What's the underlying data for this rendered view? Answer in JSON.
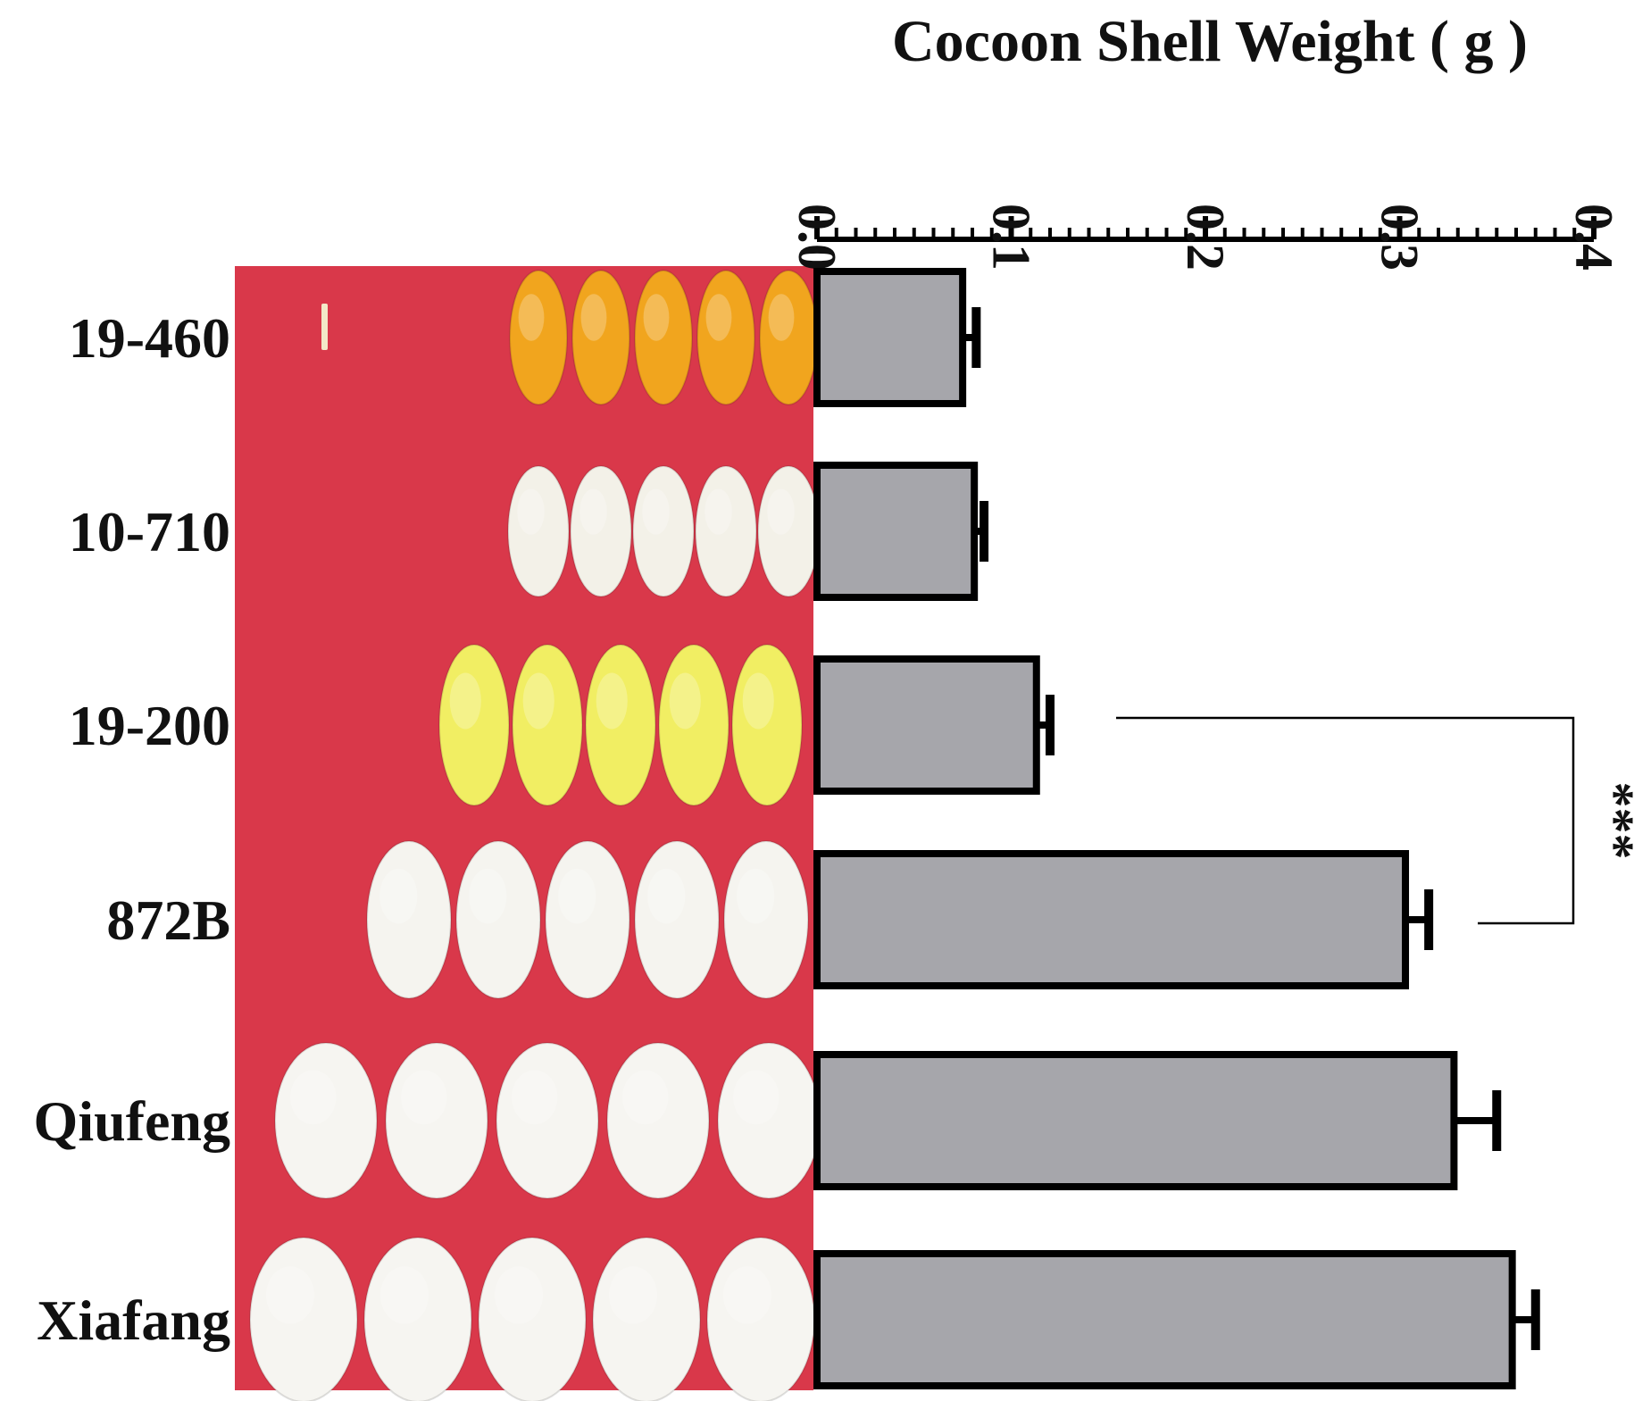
{
  "figure": {
    "photo_background_color": "#d9384a",
    "scale_bar_color": "#f3e9c8",
    "bar_fill_color": "#a6a6ab",
    "bar_stroke_color": "#000000",
    "rows": [
      {
        "label": "19-460",
        "cocoon_color": "#f1a51e",
        "cocoon_count": 5
      },
      {
        "label": "10-710",
        "cocoon_color": "#f3f1e8",
        "cocoon_count": 5
      },
      {
        "label": "19-200",
        "cocoon_color": "#f1ee63",
        "cocoon_count": 5
      },
      {
        "label": "872B",
        "cocoon_color": "#f5f4ef",
        "cocoon_count": 5
      },
      {
        "label": "Qiufeng",
        "cocoon_color": "#f6f5f1",
        "cocoon_count": 5
      },
      {
        "label": "Xiafang",
        "cocoon_color": "#f6f5f1",
        "cocoon_count": 5
      }
    ]
  },
  "chart_data": {
    "type": "bar",
    "orientation": "horizontal",
    "title": "Cocoon Shell Weight ( g )",
    "xlim": [
      0,
      0.4
    ],
    "ticks": [
      0.0,
      0.1,
      0.2,
      0.3,
      0.4
    ],
    "tick_labels": [
      "0.0",
      "0.1",
      "0.2",
      "0.3",
      "0.4"
    ],
    "minor_tick_step": 0.01,
    "categories": [
      "19-460",
      "10-710",
      "19-200",
      "872B",
      "Qiufeng",
      "Xiafang"
    ],
    "values": [
      0.075,
      0.081,
      0.113,
      0.303,
      0.328,
      0.358
    ],
    "errors": [
      0.007,
      0.005,
      0.007,
      0.012,
      0.022,
      0.012
    ],
    "significance": {
      "label": "***",
      "between": [
        "19-200",
        "872B"
      ]
    },
    "axis_position": "top",
    "grid": false,
    "legend": "none"
  }
}
